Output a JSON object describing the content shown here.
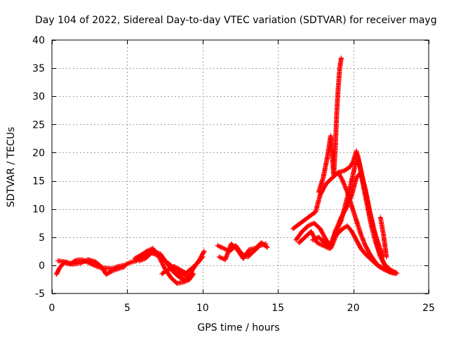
{
  "chart_data": {
    "type": "scatter",
    "title": "Day 104 of 2022, Sidereal Day-to-day VTEC variation (SDTVAR) for receiver mayg",
    "xlabel": "GPS time / hours",
    "ylabel": "SDTVAR / TECUs",
    "xlim": [
      0,
      25
    ],
    "ylim": [
      -5,
      40
    ],
    "grid": true,
    "x_ticks": [
      0,
      5,
      10,
      15,
      20,
      25
    ],
    "x_tick_labels": [
      "0",
      "5",
      "10",
      "15",
      "20",
      "25"
    ],
    "y_ticks": [
      -5,
      0,
      5,
      10,
      15,
      20,
      25,
      30,
      35,
      40
    ],
    "y_tick_labels": [
      "-5",
      "0",
      "5",
      "10",
      "15",
      "20",
      "25",
      "30",
      "35",
      "40"
    ],
    "marker": "+",
    "color": "#ff0000",
    "series": [
      {
        "name": "SDTVAR",
        "segments": [
          [
            [
              0.3,
              -1.6
            ],
            [
              0.5,
              -0.5
            ],
            [
              0.8,
              0.5
            ],
            [
              1.2,
              0.2
            ],
            [
              1.6,
              0.9
            ],
            [
              2.0,
              1.0
            ],
            [
              2.4,
              0.5
            ],
            [
              2.8,
              0.0
            ],
            [
              3.2,
              -0.4
            ],
            [
              3.6,
              -0.5
            ],
            [
              4.0,
              -0.6
            ],
            [
              4.4,
              -0.2
            ],
            [
              4.8,
              0.0
            ],
            [
              5.2,
              0.5
            ],
            [
              5.6,
              0.8
            ],
            [
              6.0,
              1.5
            ],
            [
              6.4,
              2.0
            ],
            [
              6.8,
              2.5
            ],
            [
              7.2,
              2.0
            ],
            [
              7.6,
              0.5
            ],
            [
              8.0,
              -1.0
            ],
            [
              8.4,
              -2.0
            ],
            [
              8.8,
              -2.6
            ],
            [
              9.1,
              -2.0
            ],
            [
              9.4,
              -0.5
            ],
            [
              9.8,
              1.0
            ],
            [
              10.1,
              2.5
            ]
          ],
          [
            [
              0.4,
              0.8
            ],
            [
              0.9,
              0.6
            ],
            [
              1.4,
              0.2
            ],
            [
              1.9,
              0.4
            ],
            [
              2.4,
              1.0
            ],
            [
              2.9,
              0.6
            ],
            [
              3.3,
              -0.3
            ],
            [
              3.6,
              -1.6
            ],
            [
              4.0,
              -1.0
            ],
            [
              4.4,
              -0.6
            ],
            [
              4.8,
              -0.3
            ]
          ],
          [
            [
              5.5,
              1.2
            ],
            [
              5.9,
              1.8
            ],
            [
              6.3,
              2.5
            ],
            [
              6.7,
              3.0
            ],
            [
              7.1,
              1.5
            ],
            [
              7.5,
              -0.6
            ],
            [
              7.9,
              -2.2
            ],
            [
              8.3,
              -3.2
            ],
            [
              8.7,
              -3.0
            ],
            [
              9.1,
              -2.6
            ],
            [
              9.4,
              -1.5
            ]
          ],
          [
            [
              7.3,
              -1.5
            ],
            [
              7.7,
              -0.8
            ],
            [
              8.1,
              -0.2
            ],
            [
              8.5,
              -0.8
            ],
            [
              8.9,
              -1.4
            ],
            [
              9.3,
              -0.5
            ],
            [
              9.7,
              0.5
            ],
            [
              10.0,
              1.5
            ]
          ],
          [
            [
              5.8,
              0.8
            ],
            [
              6.2,
              1.2
            ],
            [
              6.6,
              2.2
            ],
            [
              7.0,
              1.8
            ],
            [
              7.4,
              1.0
            ],
            [
              7.8,
              0.2
            ],
            [
              8.2,
              -0.8
            ],
            [
              8.6,
              -1.6
            ],
            [
              9.0,
              -2.0
            ]
          ],
          [
            [
              11.0,
              3.5
            ],
            [
              11.4,
              3.0
            ],
            [
              11.8,
              2.5
            ],
            [
              12.2,
              3.5
            ],
            [
              12.6,
              2.0
            ],
            [
              13.0,
              1.5
            ],
            [
              13.4,
              2.5
            ],
            [
              13.8,
              3.5
            ],
            [
              14.2,
              3.8
            ]
          ],
          [
            [
              11.1,
              1.5
            ],
            [
              11.5,
              1.0
            ],
            [
              11.9,
              3.8
            ],
            [
              12.3,
              2.8
            ],
            [
              12.7,
              1.2
            ],
            [
              13.1,
              2.8
            ],
            [
              13.5,
              3.0
            ],
            [
              13.9,
              4.0
            ],
            [
              14.3,
              3.2
            ]
          ],
          [
            [
              16.0,
              6.5
            ],
            [
              16.5,
              7.5
            ],
            [
              17.0,
              8.5
            ],
            [
              17.5,
              9.5
            ],
            [
              17.8,
              12.5
            ],
            [
              18.2,
              14.5
            ],
            [
              18.6,
              15.5
            ],
            [
              19.0,
              16.5
            ],
            [
              19.3,
              15.0
            ],
            [
              19.6,
              13.0
            ],
            [
              19.9,
              10.5
            ],
            [
              20.2,
              8.0
            ],
            [
              20.5,
              5.5
            ],
            [
              20.8,
              3.5
            ],
            [
              21.1,
              2.0
            ],
            [
              21.4,
              0.8
            ],
            [
              21.7,
              -0.2
            ],
            [
              22.0,
              -0.7
            ],
            [
              22.3,
              -1.0
            ],
            [
              22.6,
              -1.2
            ],
            [
              22.8,
              -1.3
            ]
          ],
          [
            [
              16.2,
              4.5
            ],
            [
              16.6,
              6.0
            ],
            [
              17.0,
              7.0
            ],
            [
              17.4,
              7.5
            ],
            [
              17.8,
              6.5
            ],
            [
              18.2,
              4.5
            ],
            [
              18.5,
              3.5
            ],
            [
              18.8,
              6.0
            ],
            [
              19.2,
              8.5
            ],
            [
              19.6,
              10.5
            ],
            [
              19.9,
              12.5
            ],
            [
              20.2,
              15.5
            ],
            [
              20.5,
              16.5
            ],
            [
              20.8,
              13.5
            ],
            [
              21.1,
              9.5
            ],
            [
              21.4,
              6.0
            ],
            [
              21.7,
              2.5
            ],
            [
              22.0,
              0.5
            ],
            [
              22.3,
              -0.5
            ],
            [
              22.6,
              -1.0
            ],
            [
              22.9,
              -1.4
            ]
          ],
          [
            [
              16.4,
              4.0
            ],
            [
              16.8,
              5.0
            ],
            [
              17.2,
              6.0
            ],
            [
              17.6,
              4.0
            ],
            [
              18.0,
              3.5
            ],
            [
              18.4,
              3.0
            ],
            [
              18.8,
              5.5
            ],
            [
              19.2,
              8.0
            ],
            [
              19.5,
              11.0
            ],
            [
              19.8,
              14.0
            ],
            [
              20.1,
              17.5
            ],
            [
              20.3,
              19.5
            ],
            [
              20.6,
              15.0
            ],
            [
              20.9,
              11.0
            ],
            [
              21.2,
              7.0
            ],
            [
              21.5,
              4.0
            ],
            [
              21.8,
              1.5
            ],
            [
              22.1,
              0.0
            ],
            [
              22.4,
              -0.8
            ]
          ],
          [
            [
              17.3,
              4.5
            ],
            [
              17.7,
              5.0
            ],
            [
              18.1,
              4.0
            ],
            [
              18.5,
              3.0
            ],
            [
              18.9,
              5.5
            ],
            [
              19.3,
              6.5
            ],
            [
              19.6,
              7.0
            ],
            [
              19.9,
              6.0
            ],
            [
              20.2,
              4.5
            ],
            [
              20.5,
              3.0
            ],
            [
              20.8,
              2.0
            ],
            [
              21.2,
              1.0
            ],
            [
              21.6,
              0.0
            ],
            [
              22.0,
              -0.5
            ],
            [
              22.4,
              -1.2
            ],
            [
              22.8,
              -1.5
            ]
          ],
          [
            [
              17.7,
              13.0
            ],
            [
              18.0,
              15.5
            ],
            [
              18.3,
              19.5
            ],
            [
              18.5,
              23.0
            ],
            [
              18.7,
              16.0
            ],
            [
              18.8,
              20.5
            ],
            [
              18.9,
              27.0
            ],
            [
              19.0,
              31.5
            ],
            [
              19.1,
              35.0
            ],
            [
              19.2,
              36.8
            ]
          ],
          [
            [
              19.0,
              16.5
            ],
            [
              19.4,
              16.8
            ],
            [
              19.8,
              17.5
            ],
            [
              20.0,
              18.5
            ],
            [
              20.2,
              20.3
            ],
            [
              20.5,
              17.0
            ],
            [
              20.8,
              13.0
            ],
            [
              21.1,
              9.0
            ],
            [
              21.4,
              6.0
            ],
            [
              21.7,
              3.5
            ],
            [
              22.0,
              1.5
            ]
          ],
          [
            [
              21.8,
              8.5
            ],
            [
              21.9,
              7.0
            ],
            [
              22.0,
              5.5
            ],
            [
              22.1,
              3.5
            ],
            [
              22.2,
              1.5
            ]
          ]
        ]
      }
    ]
  }
}
